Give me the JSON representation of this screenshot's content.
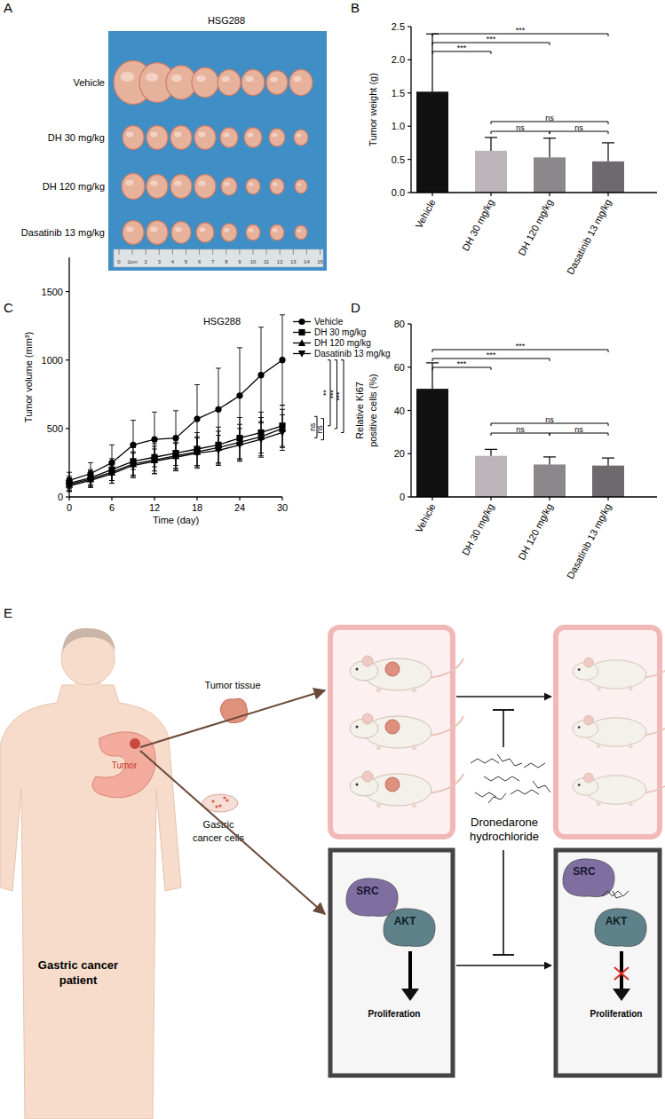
{
  "chart_data": [
    {
      "type": "bar",
      "y_label": "Tumor weight (g)",
      "categories": [
        "Vehicle",
        "DH 30 mg/kg",
        "DH 120 mg/kg",
        "Dasatinib 13 mg/kg"
      ],
      "values": [
        1.52,
        0.63,
        0.53,
        0.47
      ],
      "errors": [
        0.87,
        0.2,
        0.29,
        0.28
      ],
      "colors": [
        "#111111",
        "#bcb6ba",
        "#8c878b",
        "#6e696d"
      ],
      "ylim": [
        0,
        2.5
      ],
      "yticks": [
        {
          "value": 0,
          "label": "0.0"
        },
        0.5,
        {
          "value": 1,
          "label": "1.0"
        },
        1.5,
        {
          "value": 2,
          "label": "2.0"
        },
        2.5
      ],
      "comparisons": [
        {
          "pair": [
            0,
            3
          ],
          "label": "***"
        },
        {
          "pair": [
            0,
            2
          ],
          "label": "***"
        },
        {
          "pair": [
            0,
            1
          ],
          "label": "***"
        },
        {
          "pair": [
            1,
            3
          ],
          "label": "ns"
        },
        {
          "pair": [
            1,
            2
          ],
          "label": "ns"
        },
        {
          "pair": [
            2,
            3
          ],
          "label": "ns"
        }
      ]
    },
    {
      "type": "line",
      "title": "HSG288",
      "x_label": "Time (day)",
      "y_label": "Tumor volume (mm³)",
      "x": [
        0,
        3,
        6,
        9,
        12,
        15,
        18,
        21,
        24,
        27,
        30
      ],
      "xlim": [
        0,
        30
      ],
      "xticks": [
        0,
        6,
        12,
        18,
        24,
        30
      ],
      "ylim": [
        0,
        1750
      ],
      "yticks": [
        0,
        500,
        1000,
        1500
      ],
      "legend": "right",
      "series": [
        {
          "name": "Vehicle",
          "color": "#000000",
          "marker": "circle",
          "values": [
            120,
            170,
            250,
            380,
            420,
            430,
            570,
            640,
            740,
            890,
            1000
          ],
          "errors": [
            60,
            80,
            130,
            180,
            200,
            200,
            250,
            300,
            350,
            350,
            330
          ]
        },
        {
          "name": "DH 30 mg/kg",
          "color": "#000000",
          "marker": "square",
          "values": [
            100,
            140,
            200,
            260,
            290,
            320,
            350,
            380,
            430,
            470,
            520
          ],
          "errors": [
            50,
            60,
            80,
            100,
            100,
            110,
            120,
            130,
            150,
            150,
            150
          ]
        },
        {
          "name": "DH 120 mg/kg",
          "color": "#000000",
          "marker": "triangle",
          "values": [
            90,
            130,
            180,
            240,
            270,
            300,
            330,
            360,
            400,
            440,
            500
          ],
          "errors": [
            50,
            60,
            80,
            90,
            100,
            100,
            110,
            120,
            130,
            140,
            140
          ]
        },
        {
          "name": "Dasatinib 13 mg/kg",
          "color": "#000000",
          "marker": "triangle-down",
          "values": [
            80,
            120,
            170,
            230,
            260,
            290,
            320,
            340,
            380,
            420,
            470
          ],
          "errors": [
            40,
            50,
            70,
            90,
            90,
            100,
            110,
            110,
            120,
            130,
            130
          ]
        }
      ],
      "comparisons": [
        {
          "pair": [
            1,
            2
          ],
          "label": "ns"
        },
        {
          "pair": [
            1,
            3
          ],
          "label": "ns"
        },
        {
          "pair": [
            0,
            1
          ],
          "label": "**"
        },
        {
          "pair": [
            0,
            2
          ],
          "label": "***"
        },
        {
          "pair": [
            0,
            3
          ],
          "label": "***"
        }
      ]
    },
    {
      "type": "bar",
      "y_label": [
        "Relative Ki67",
        "positive cells (%)"
      ],
      "categories": [
        "Vehicle",
        "DH 30 mg/kg",
        "DH 120 mg/kg",
        "Dasatinib 13 mg/kg"
      ],
      "values": [
        50,
        19,
        15,
        14.5
      ],
      "errors": [
        12,
        3,
        3.5,
        3.5
      ],
      "colors": [
        "#111111",
        "#bcb6ba",
        "#8c878b",
        "#6e696d"
      ],
      "ylim": [
        0,
        80
      ],
      "yticks": [
        0,
        20,
        40,
        60,
        80
      ],
      "comparisons": [
        {
          "pair": [
            0,
            3
          ],
          "label": "***"
        },
        {
          "pair": [
            0,
            2
          ],
          "label": "***"
        },
        {
          "pair": [
            0,
            1
          ],
          "label": "***"
        },
        {
          "pair": [
            1,
            3
          ],
          "label": "ns"
        },
        {
          "pair": [
            1,
            2
          ],
          "label": "ns"
        },
        {
          "pair": [
            2,
            3
          ],
          "label": "ns"
        }
      ]
    }
  ],
  "figure": {
    "panel_labels": [
      "A",
      "B",
      "C",
      "D",
      "E"
    ],
    "photo": {
      "title": "HSG288",
      "rows": [
        "Vehicle",
        "DH 30 mg/kg",
        "DH 120 mg/kg",
        "Dasatinib 13 mg/kg"
      ],
      "ruler_labels": [
        "0",
        "1cm",
        "2",
        "3",
        "4",
        "5",
        "6",
        "7",
        "8",
        "9",
        "10",
        "11",
        "12",
        "13",
        "14",
        "15"
      ]
    },
    "diagram": {
      "patient_label": [
        "Gastric cancer",
        "patient"
      ],
      "tumor_label": "Tumor",
      "tissue_label": "Tumor tissue",
      "cells_label": [
        "Gastric",
        "cancer cells"
      ],
      "drug_label": [
        "Dronedarone",
        "hydrochloride"
      ],
      "before": {
        "proteins": [
          "SRC",
          "AKT"
        ],
        "outcome": "Proliferation"
      },
      "after": {
        "proteins": [
          "SRC",
          "AKT"
        ],
        "outcome": "Proliferation"
      }
    }
  }
}
